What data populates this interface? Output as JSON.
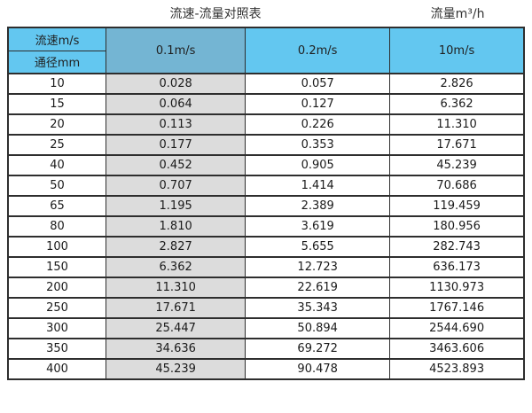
{
  "header": {
    "title": "流速-流量对照表",
    "unit_label": "流量m³/h"
  },
  "table": {
    "corner": {
      "top": "流速m/s",
      "bottom": "通径mm"
    },
    "speed_columns": [
      "0.1m/s",
      "0.2m/s",
      "10m/s"
    ],
    "rows": [
      {
        "diameter": "10",
        "values": [
          "0.028",
          "0.057",
          "2.826"
        ]
      },
      {
        "diameter": "15",
        "values": [
          "0.064",
          "0.127",
          "6.362"
        ]
      },
      {
        "diameter": "20",
        "values": [
          "0.113",
          "0.226",
          "11.310"
        ]
      },
      {
        "diameter": "25",
        "values": [
          "0.177",
          "0.353",
          "17.671"
        ]
      },
      {
        "diameter": "40",
        "values": [
          "0.452",
          "0.905",
          "45.239"
        ]
      },
      {
        "diameter": "50",
        "values": [
          "0.707",
          "1.414",
          "70.686"
        ]
      },
      {
        "diameter": "65",
        "values": [
          "1.195",
          "2.389",
          "119.459"
        ]
      },
      {
        "diameter": "80",
        "values": [
          "1.810",
          "3.619",
          "180.956"
        ]
      },
      {
        "diameter": "100",
        "values": [
          "2.827",
          "5.655",
          "282.743"
        ]
      },
      {
        "diameter": "150",
        "values": [
          "6.362",
          "12.723",
          "636.173"
        ]
      },
      {
        "diameter": "200",
        "values": [
          "11.310",
          "22.619",
          "1130.973"
        ]
      },
      {
        "diameter": "250",
        "values": [
          "17.671",
          "35.343",
          "1767.146"
        ]
      },
      {
        "diameter": "300",
        "values": [
          "25.447",
          "50.894",
          "2544.690"
        ]
      },
      {
        "diameter": "350",
        "values": [
          "34.636",
          "69.272",
          "3463.606"
        ]
      },
      {
        "diameter": "400",
        "values": [
          "45.239",
          "90.478",
          "4523.893"
        ]
      }
    ]
  },
  "colors": {
    "header_blue": "#63C7F0",
    "highlight_column_blue": "#74B5D3",
    "highlight_column_gray": "#DCDCDC",
    "border": "#2E2E2E"
  },
  "chart_data": {
    "type": "table",
    "title": "流速-流量对照表",
    "unit": "流量m³/h",
    "column_header": "流速m/s",
    "row_header": "通径mm",
    "columns_velocity_ms": [
      0.1,
      0.2,
      10
    ],
    "rows": [
      {
        "diameter_mm": 10,
        "flow_m3h": [
          0.028,
          0.057,
          2.826
        ]
      },
      {
        "diameter_mm": 15,
        "flow_m3h": [
          0.064,
          0.127,
          6.362
        ]
      },
      {
        "diameter_mm": 20,
        "flow_m3h": [
          0.113,
          0.226,
          11.31
        ]
      },
      {
        "diameter_mm": 25,
        "flow_m3h": [
          0.177,
          0.353,
          17.671
        ]
      },
      {
        "diameter_mm": 40,
        "flow_m3h": [
          0.452,
          0.905,
          45.239
        ]
      },
      {
        "diameter_mm": 50,
        "flow_m3h": [
          0.707,
          1.414,
          70.686
        ]
      },
      {
        "diameter_mm": 65,
        "flow_m3h": [
          1.195,
          2.389,
          119.459
        ]
      },
      {
        "diameter_mm": 80,
        "flow_m3h": [
          1.81,
          3.619,
          180.956
        ]
      },
      {
        "diameter_mm": 100,
        "flow_m3h": [
          2.827,
          5.655,
          282.743
        ]
      },
      {
        "diameter_mm": 150,
        "flow_m3h": [
          6.362,
          12.723,
          636.173
        ]
      },
      {
        "diameter_mm": 200,
        "flow_m3h": [
          11.31,
          22.619,
          1130.973
        ]
      },
      {
        "diameter_mm": 250,
        "flow_m3h": [
          17.671,
          35.343,
          1767.146
        ]
      },
      {
        "diameter_mm": 300,
        "flow_m3h": [
          25.447,
          50.894,
          2544.69
        ]
      },
      {
        "diameter_mm": 350,
        "flow_m3h": [
          34.636,
          69.272,
          3463.606
        ]
      },
      {
        "diameter_mm": 400,
        "flow_m3h": [
          45.239,
          90.478,
          4523.893
        ]
      }
    ],
    "layout": {
      "highlighted_column": "0.1m/s",
      "grid": true,
      "legend": "none"
    }
  }
}
